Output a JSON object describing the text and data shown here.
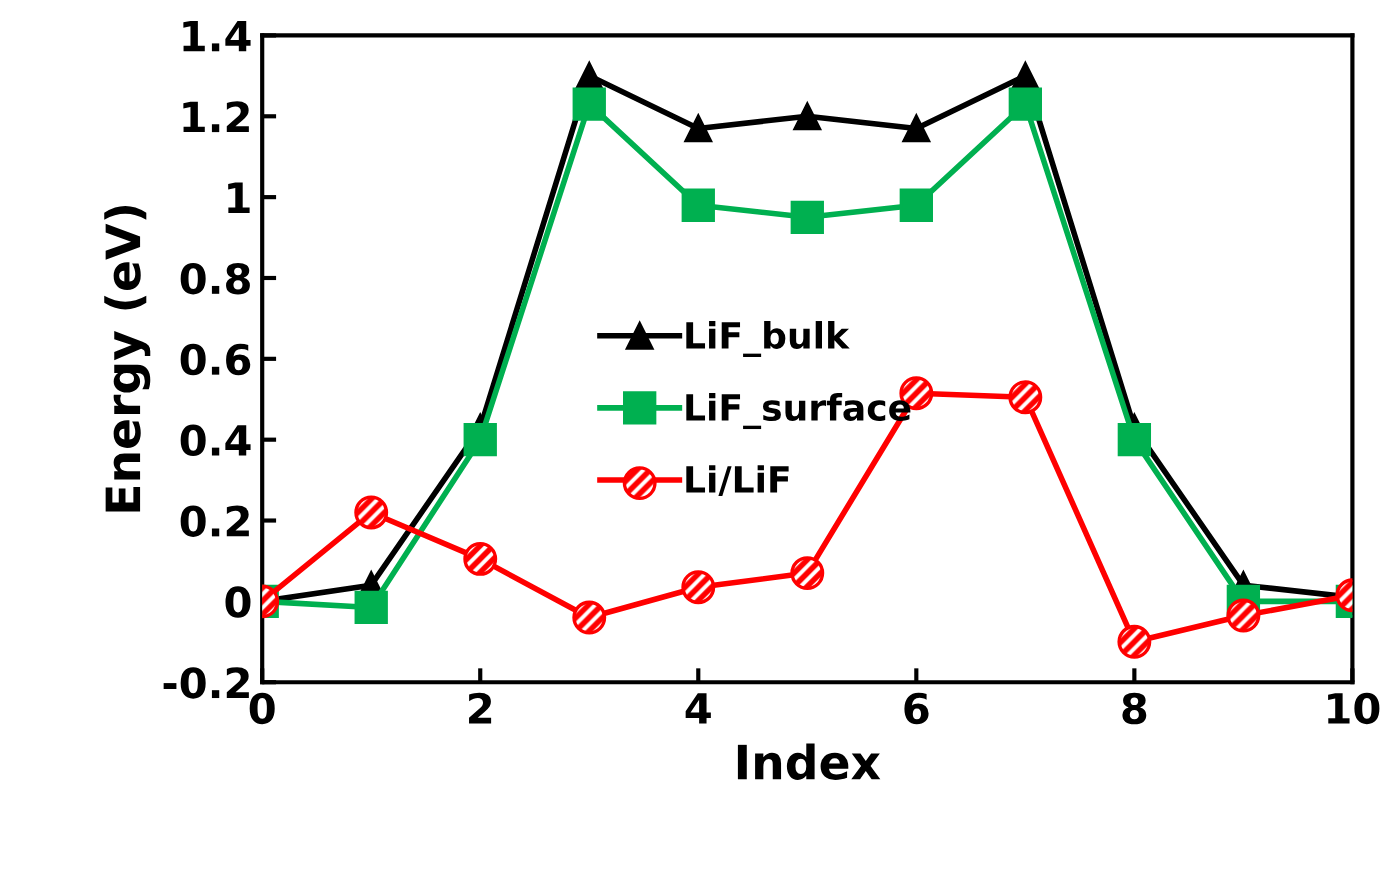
{
  "chart_data": {
    "type": "line",
    "xlabel": "Index",
    "ylabel": "Energy (eV)",
    "x": [
      0,
      1,
      2,
      3,
      4,
      5,
      6,
      7,
      8,
      9,
      10
    ],
    "xlim": [
      0,
      10
    ],
    "xticks": [
      0,
      2,
      4,
      6,
      8,
      10
    ],
    "ylim": [
      -0.2,
      1.4
    ],
    "yticks": [
      -0.2,
      0,
      0.2,
      0.4,
      0.6,
      0.8,
      1,
      1.2,
      1.4
    ],
    "grid": false,
    "legend": "center left",
    "series": [
      {
        "name": "LiF_bulk",
        "color": "#000000",
        "marker": "triangle",
        "values": [
          0,
          0.04,
          0.43,
          1.3,
          1.17,
          1.2,
          1.17,
          1.3,
          0.43,
          0.04,
          0.01
        ]
      },
      {
        "name": "LiF_surface",
        "color": "#00b050",
        "marker": "square",
        "values": [
          0,
          -0.015,
          0.4,
          1.23,
          0.98,
          0.95,
          0.98,
          1.23,
          0.4,
          0,
          0
        ]
      },
      {
        "name": "Li/LiF",
        "color": "#ff0000",
        "marker": "circle",
        "values": [
          0,
          0.22,
          0.105,
          -0.04,
          0.035,
          0.07,
          0.515,
          0.505,
          -0.1,
          -0.035,
          0.015
        ]
      }
    ]
  }
}
